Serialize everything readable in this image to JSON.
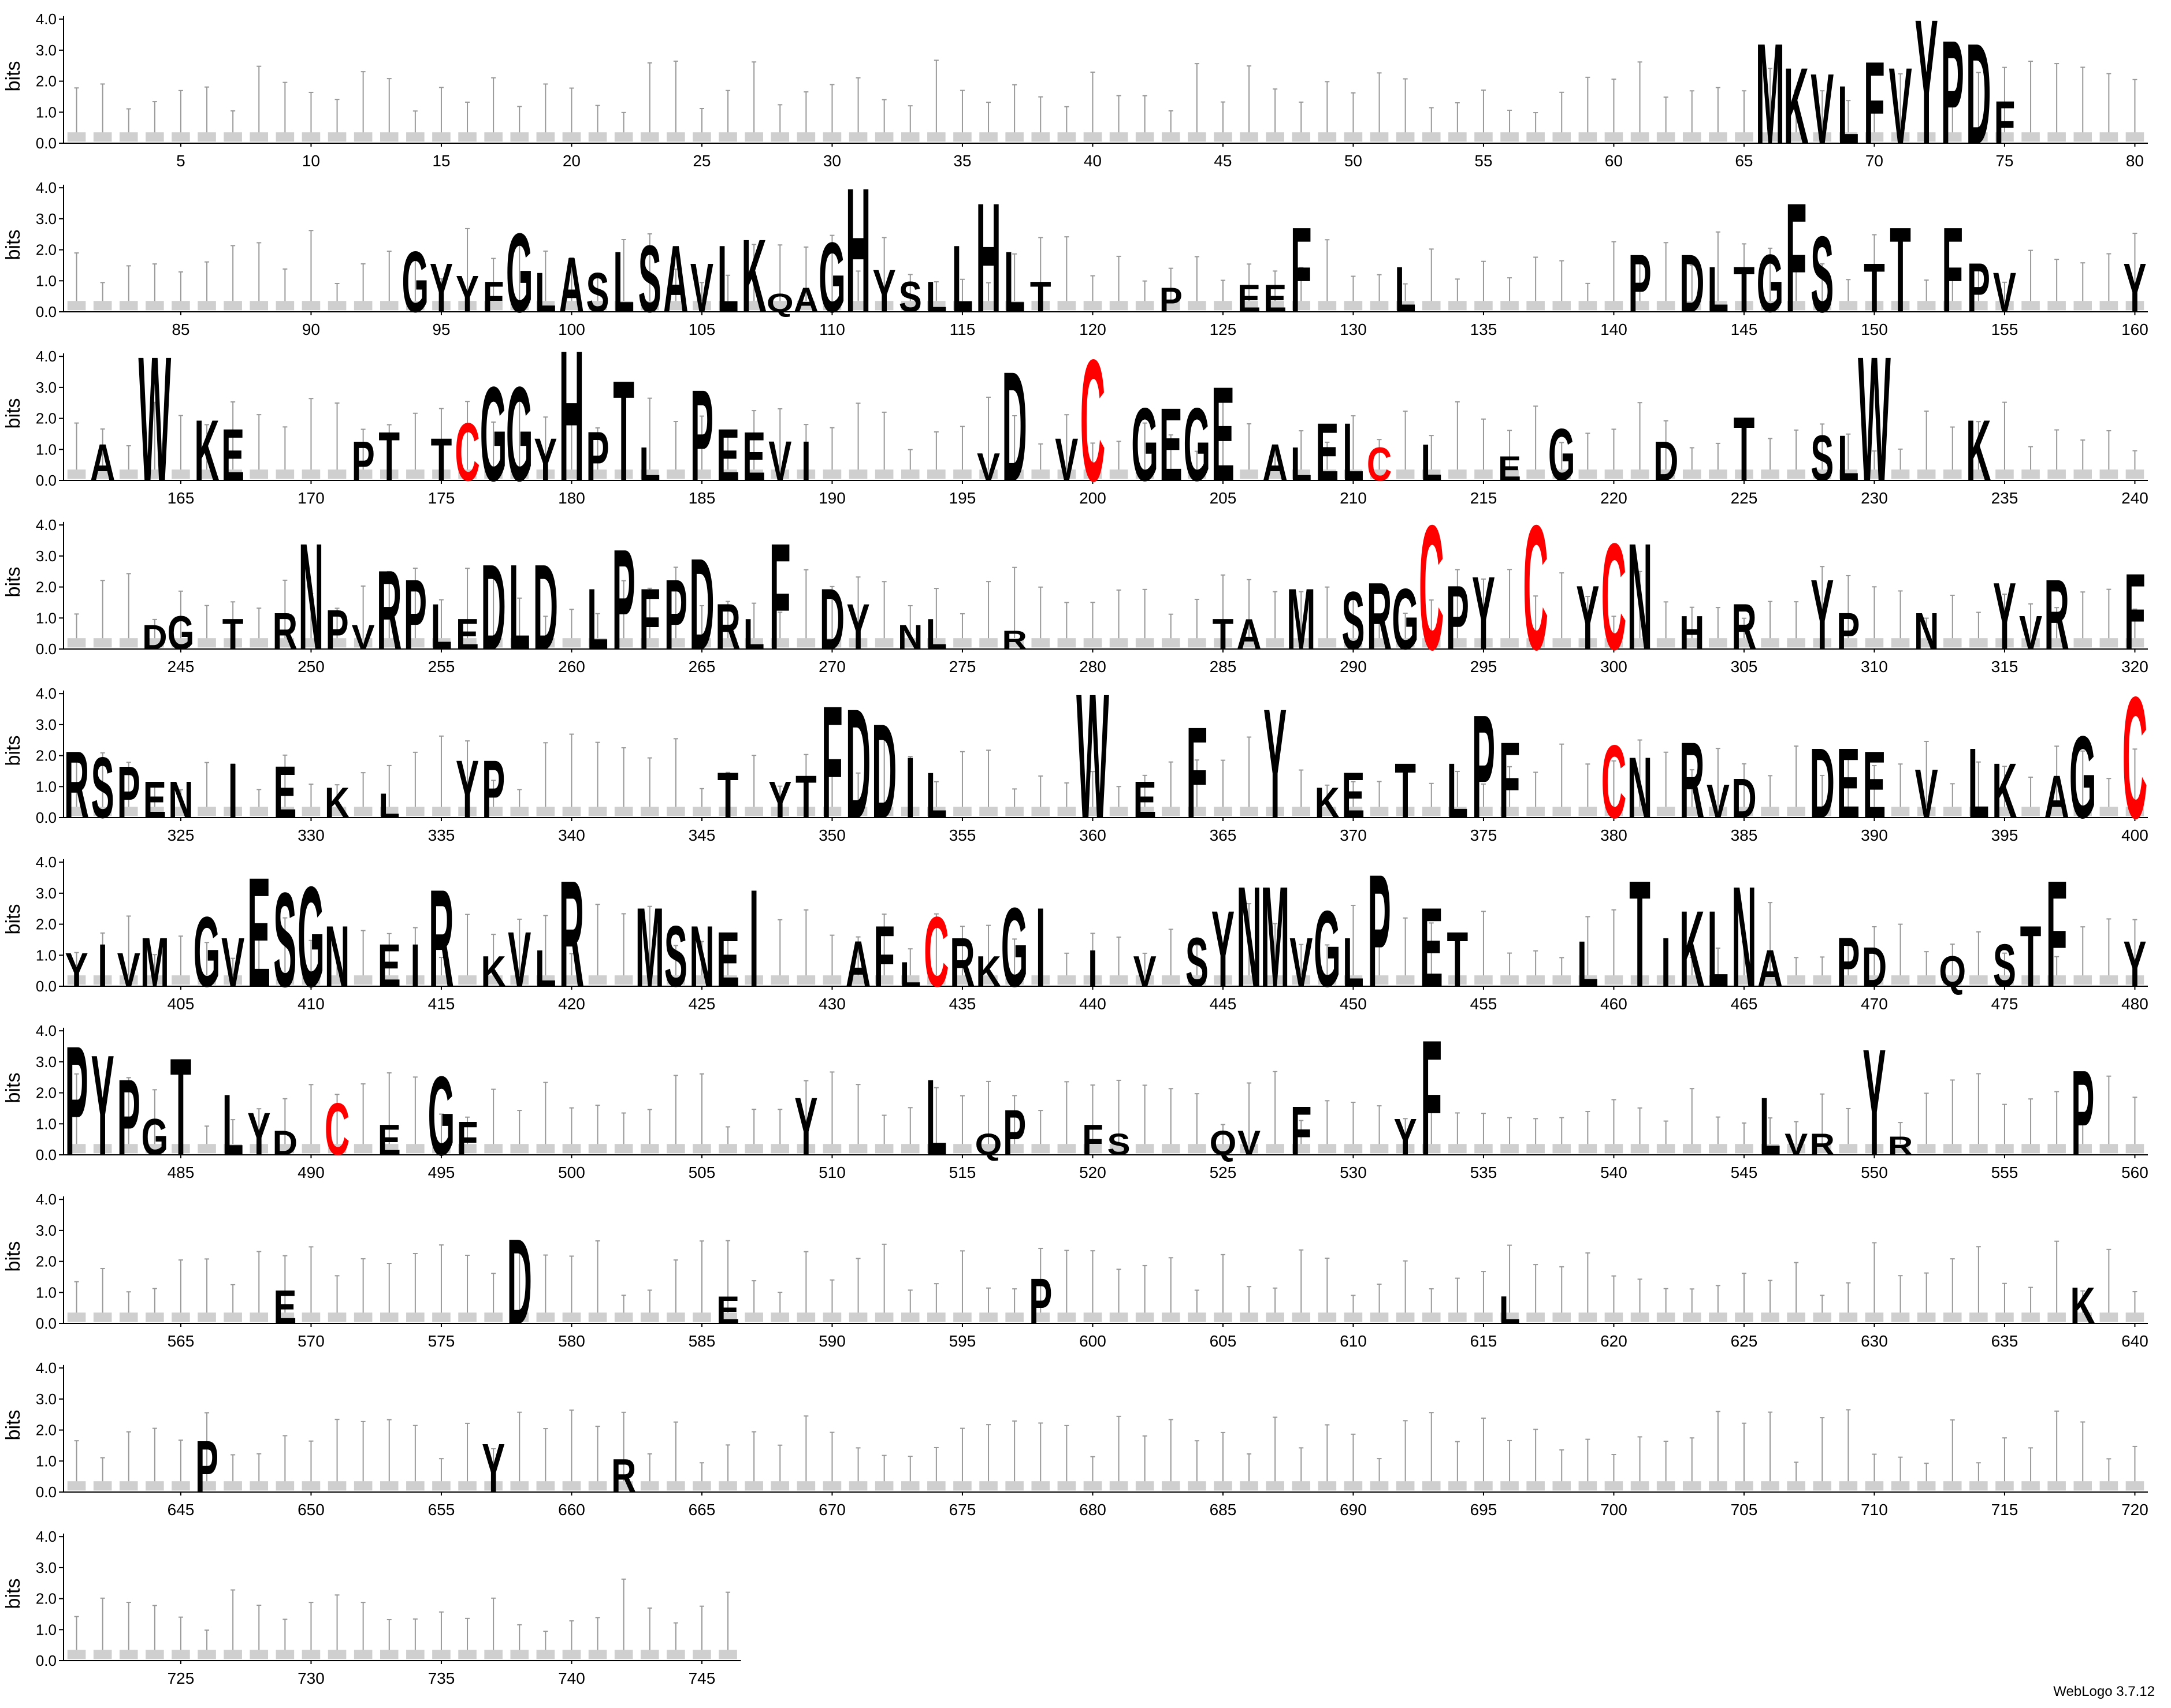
{
  "chart_data": {
    "type": "sequence-logo",
    "ylabel": "bits",
    "ylim": [
      0,
      4.32
    ],
    "yticks": [
      "0.0",
      "1.0",
      "2.0",
      "3.0",
      "4.0"
    ],
    "positions_per_row": 80,
    "sequence_length": 746,
    "highlight_residue": "C",
    "colors": {
      "default": "#000000",
      "cysteine": "#ff0000",
      "errorbar": "#999999"
    },
    "letters": [
      [
        66,
        "M",
        3.3
      ],
      [
        67,
        "K",
        2.5
      ],
      [
        68,
        "V",
        2.3
      ],
      [
        69,
        "L",
        1.9
      ],
      [
        70,
        "F",
        2.7
      ],
      [
        71,
        "V",
        2.5
      ],
      [
        72,
        "Y",
        4.1
      ],
      [
        73,
        "P",
        3.4
      ],
      [
        74,
        "D",
        3.3
      ],
      [
        75,
        "F",
        1.4
      ],
      [
        94,
        "G",
        2.0
      ],
      [
        95,
        "Y",
        1.6
      ],
      [
        96,
        "Y",
        1.2
      ],
      [
        97,
        "F",
        1.0
      ],
      [
        98,
        "G",
        2.6
      ],
      [
        99,
        "L",
        1.3
      ],
      [
        100,
        "A",
        1.8
      ],
      [
        101,
        "S",
        1.3
      ],
      [
        102,
        "L",
        2.0
      ],
      [
        103,
        "S",
        2.2
      ],
      [
        104,
        "A",
        2.2
      ],
      [
        105,
        "V",
        1.6
      ],
      [
        106,
        "L",
        2.2
      ],
      [
        107,
        "K",
        2.4
      ],
      [
        108,
        "Q",
        0.6
      ],
      [
        109,
        "A",
        0.8
      ],
      [
        110,
        "G",
        2.3
      ],
      [
        111,
        "H",
        4.1
      ],
      [
        112,
        "Y",
        1.4
      ],
      [
        113,
        "S",
        1.0
      ],
      [
        114,
        "L",
        1.0
      ],
      [
        115,
        "L",
        2.2
      ],
      [
        116,
        "H",
        3.6
      ],
      [
        117,
        "L",
        2.0
      ],
      [
        118,
        "T",
        1.0
      ],
      [
        123,
        "P",
        0.8
      ],
      [
        126,
        "E",
        0.9
      ],
      [
        127,
        "E",
        0.9
      ],
      [
        128,
        "F",
        2.8
      ],
      [
        132,
        "L",
        1.5
      ],
      [
        141,
        "P",
        1.9
      ],
      [
        143,
        "D",
        1.9
      ],
      [
        144,
        "L",
        1.5
      ],
      [
        145,
        "T",
        1.5
      ],
      [
        146,
        "G",
        1.9
      ],
      [
        147,
        "F",
        3.6
      ],
      [
        148,
        "S",
        2.5
      ],
      [
        150,
        "T",
        1.6
      ],
      [
        151,
        "T",
        2.8
      ],
      [
        153,
        "F",
        2.8
      ],
      [
        154,
        "P",
        1.6
      ],
      [
        155,
        "V",
        1.3
      ],
      [
        160,
        "Y",
        1.6
      ],
      [
        162,
        "A",
        1.2
      ],
      [
        164,
        "W",
        4.1
      ],
      [
        166,
        "K",
        2.0
      ],
      [
        167,
        "E",
        1.7
      ],
      [
        172,
        "P",
        1.3
      ],
      [
        173,
        "T",
        1.6
      ],
      [
        175,
        "T",
        1.4
      ],
      [
        176,
        "C",
        1.9
      ],
      [
        177,
        "G",
        3.1
      ],
      [
        178,
        "G",
        3.1
      ],
      [
        179,
        "Y",
        1.4
      ],
      [
        180,
        "H",
        4.3
      ],
      [
        181,
        "P",
        1.6
      ],
      [
        182,
        "T",
        3.3
      ],
      [
        183,
        "L",
        1.1
      ],
      [
        185,
        "P",
        3.0
      ],
      [
        186,
        "E",
        1.7
      ],
      [
        187,
        "E",
        1.6
      ],
      [
        188,
        "V",
        1.3
      ],
      [
        189,
        "I",
        1.3
      ],
      [
        196,
        "V",
        0.9
      ],
      [
        197,
        "D",
        3.6
      ],
      [
        199,
        "V",
        1.4
      ],
      [
        200,
        "C",
        4.0
      ],
      [
        202,
        "G",
        2.4
      ],
      [
        203,
        "E",
        2.4
      ],
      [
        204,
        "G",
        2.4
      ],
      [
        205,
        "E",
        3.1
      ],
      [
        207,
        "A",
        1.2
      ],
      [
        208,
        "L",
        1.1
      ],
      [
        209,
        "E",
        1.9
      ],
      [
        210,
        "L",
        1.9
      ],
      [
        211,
        "C",
        1.1
      ],
      [
        213,
        "L",
        1.2
      ],
      [
        216,
        "E",
        0.8
      ],
      [
        218,
        "G",
        1.7
      ],
      [
        222,
        "D",
        1.3
      ],
      [
        225,
        "T",
        2.1
      ],
      [
        228,
        "S",
        1.5
      ],
      [
        229,
        "L",
        1.5
      ],
      [
        230,
        "W",
        4.1
      ],
      [
        234,
        "K",
        2.0
      ],
      [
        244,
        "D",
        0.8
      ],
      [
        245,
        "G",
        1.1
      ],
      [
        247,
        "T",
        1.0
      ],
      [
        249,
        "R",
        1.2
      ],
      [
        250,
        "N",
        3.5
      ],
      [
        251,
        "P",
        1.3
      ],
      [
        252,
        "V",
        0.8
      ],
      [
        253,
        "R",
        2.6
      ],
      [
        254,
        "P",
        2.3
      ],
      [
        255,
        "L",
        1.5
      ],
      [
        256,
        "E",
        1.0
      ],
      [
        257,
        "D",
        2.8
      ],
      [
        258,
        "L",
        2.8
      ],
      [
        259,
        "D",
        2.8
      ],
      [
        261,
        "L",
        2.0
      ],
      [
        262,
        "P",
        3.3
      ],
      [
        263,
        "F",
        2.0
      ],
      [
        264,
        "P",
        2.3
      ],
      [
        265,
        "D",
        3.0
      ],
      [
        266,
        "R",
        1.5
      ],
      [
        267,
        "L",
        1.0
      ],
      [
        268,
        "F",
        3.5
      ],
      [
        270,
        "D",
        2.0
      ],
      [
        271,
        "Y",
        1.5
      ],
      [
        273,
        "N",
        0.8
      ],
      [
        274,
        "L",
        1.0
      ],
      [
        277,
        "R",
        0.6
      ],
      [
        285,
        "T",
        1.0
      ],
      [
        286,
        "A",
        1.0
      ],
      [
        288,
        "M",
        2.0
      ],
      [
        290,
        "S",
        1.9
      ],
      [
        291,
        "R",
        2.2
      ],
      [
        292,
        "G",
        2.0
      ],
      [
        293,
        "C",
        4.1
      ],
      [
        294,
        "P",
        2.1
      ],
      [
        295,
        "Y",
        2.4
      ],
      [
        297,
        "C",
        4.1
      ],
      [
        299,
        "Y",
        2.1
      ],
      [
        300,
        "C",
        3.5
      ],
      [
        301,
        "N",
        3.5
      ],
      [
        303,
        "H",
        1.1
      ],
      [
        305,
        "R",
        1.5
      ],
      [
        308,
        "Y",
        2.3
      ],
      [
        309,
        "P",
        1.2
      ],
      [
        312,
        "N",
        1.2
      ],
      [
        315,
        "Y",
        2.2
      ],
      [
        316,
        "V",
        1.1
      ],
      [
        317,
        "R",
        2.3
      ],
      [
        320,
        "F",
        2.5
      ],
      [
        321,
        "R",
        2.2
      ],
      [
        322,
        "S",
        2.0
      ],
      [
        323,
        "P",
        1.7
      ],
      [
        324,
        "E",
        1.2
      ],
      [
        325,
        "N",
        1.2
      ],
      [
        327,
        "I",
        1.8
      ],
      [
        329,
        "E",
        1.7
      ],
      [
        331,
        "K",
        1.0
      ],
      [
        333,
        "L",
        0.8
      ],
      [
        336,
        "Y",
        1.9
      ],
      [
        337,
        "P",
        1.9
      ],
      [
        346,
        "T",
        1.5
      ],
      [
        348,
        "Y",
        1.2
      ],
      [
        349,
        "T",
        1.4
      ],
      [
        350,
        "F",
        3.7
      ],
      [
        351,
        "D",
        3.6
      ],
      [
        352,
        "D",
        3.1
      ],
      [
        353,
        "I",
        2.0
      ],
      [
        354,
        "L",
        1.5
      ],
      [
        360,
        "W",
        4.1
      ],
      [
        362,
        "E",
        1.2
      ],
      [
        364,
        "F",
        3.0
      ],
      [
        367,
        "Y",
        3.6
      ],
      [
        369,
        "K",
        1.0
      ],
      [
        370,
        "E",
        1.5
      ],
      [
        372,
        "T",
        1.8
      ],
      [
        374,
        "L",
        1.8
      ],
      [
        375,
        "P",
        3.4
      ],
      [
        376,
        "F",
        2.5
      ],
      [
        380,
        "C",
        2.4
      ],
      [
        381,
        "N",
        2.0
      ],
      [
        383,
        "R",
        2.5
      ],
      [
        384,
        "V",
        1.1
      ],
      [
        385,
        "D",
        1.3
      ],
      [
        388,
        "D",
        2.3
      ],
      [
        389,
        "E",
        2.3
      ],
      [
        390,
        "E",
        2.2
      ],
      [
        392,
        "V",
        1.6
      ],
      [
        394,
        "L",
        2.3
      ],
      [
        395,
        "K",
        1.8
      ],
      [
        397,
        "A",
        1.4
      ],
      [
        398,
        "G",
        2.7
      ],
      [
        400,
        "C",
        4.0
      ],
      [
        401,
        "Y",
        1.1
      ],
      [
        402,
        "I",
        1.4
      ],
      [
        403,
        "V",
        1.1
      ],
      [
        404,
        "M",
        1.6
      ],
      [
        406,
        "G",
        2.3
      ],
      [
        407,
        "V",
        1.6
      ],
      [
        408,
        "E",
        3.6
      ],
      [
        409,
        "S",
        3.1
      ],
      [
        410,
        "G",
        3.3
      ],
      [
        411,
        "N",
        2.0
      ],
      [
        413,
        "E",
        1.4
      ],
      [
        414,
        "I",
        1.4
      ],
      [
        415,
        "R",
        3.2
      ],
      [
        417,
        "K",
        1.0
      ],
      [
        418,
        "V",
        1.8
      ],
      [
        419,
        "L",
        1.2
      ],
      [
        420,
        "R",
        3.5
      ],
      [
        423,
        "M",
        2.6
      ],
      [
        424,
        "S",
        2.0
      ],
      [
        425,
        "N",
        2.0
      ],
      [
        426,
        "E",
        1.8
      ],
      [
        427,
        "I",
        3.2
      ],
      [
        431,
        "A",
        1.5
      ],
      [
        432,
        "F",
        2.0
      ],
      [
        433,
        "L",
        0.8
      ],
      [
        434,
        "C",
        2.3
      ],
      [
        435,
        "R",
        1.6
      ],
      [
        436,
        "K",
        1.0
      ],
      [
        437,
        "G",
        2.6
      ],
      [
        438,
        "I",
        2.6
      ],
      [
        440,
        "I",
        1.2
      ],
      [
        442,
        "V",
        1.0
      ],
      [
        444,
        "S",
        1.6
      ],
      [
        445,
        "Y",
        2.5
      ],
      [
        446,
        "N",
        3.3
      ],
      [
        447,
        "M",
        3.3
      ],
      [
        448,
        "V",
        1.6
      ],
      [
        449,
        "G",
        2.5
      ],
      [
        450,
        "L",
        1.6
      ],
      [
        451,
        "P",
        3.7
      ],
      [
        453,
        "E",
        2.6
      ],
      [
        454,
        "T",
        1.8
      ],
      [
        459,
        "L",
        1.5
      ],
      [
        461,
        "T",
        3.5
      ],
      [
        462,
        "I",
        1.6
      ],
      [
        463,
        "K",
        2.5
      ],
      [
        464,
        "L",
        2.5
      ],
      [
        465,
        "N",
        3.3
      ],
      [
        466,
        "A",
        1.2
      ],
      [
        469,
        "P",
        1.6
      ],
      [
        470,
        "D",
        1.3
      ],
      [
        473,
        "Q",
        1.0
      ],
      [
        475,
        "S",
        1.4
      ],
      [
        476,
        "T",
        2.0
      ],
      [
        477,
        "F",
        3.5
      ],
      [
        480,
        "Y",
        1.5
      ],
      [
        481,
        "P",
        3.6
      ],
      [
        482,
        "Y",
        3.3
      ],
      [
        483,
        "P",
        2.5
      ],
      [
        484,
        "G",
        1.2
      ],
      [
        485,
        "T",
        3.2
      ],
      [
        487,
        "L",
        2.0
      ],
      [
        488,
        "Y",
        1.4
      ],
      [
        489,
        "D",
        0.8
      ],
      [
        491,
        "C",
        1.7
      ],
      [
        493,
        "E",
        1.0
      ],
      [
        495,
        "G",
        2.6
      ],
      [
        496,
        "F",
        1.1
      ],
      [
        509,
        "Y",
        1.9
      ],
      [
        514,
        "L",
        2.5
      ],
      [
        516,
        "Q",
        0.7
      ],
      [
        517,
        "P",
        1.5
      ],
      [
        520,
        "F",
        1.0
      ],
      [
        521,
        "S",
        0.7
      ],
      [
        525,
        "Q",
        0.8
      ],
      [
        526,
        "V",
        0.8
      ],
      [
        528,
        "F",
        1.6
      ],
      [
        532,
        "Y",
        1.2
      ],
      [
        533,
        "F",
        3.8
      ],
      [
        546,
        "L",
        1.9
      ],
      [
        547,
        "V",
        0.7
      ],
      [
        548,
        "R",
        0.7
      ],
      [
        550,
        "Y",
        3.5
      ],
      [
        551,
        "R",
        0.6
      ],
      [
        558,
        "P",
        2.8
      ],
      [
        569,
        "E",
        1.1
      ],
      [
        578,
        "D",
        2.8
      ],
      [
        586,
        "E",
        0.9
      ],
      [
        598,
        "P",
        1.5
      ],
      [
        616,
        "L",
        0.9
      ],
      [
        638,
        "K",
        1.2
      ],
      [
        646,
        "P",
        1.7
      ],
      [
        657,
        "Y",
        1.6
      ],
      [
        662,
        "R",
        1.1
      ]
    ]
  },
  "credit": "WebLogo 3.7.12"
}
